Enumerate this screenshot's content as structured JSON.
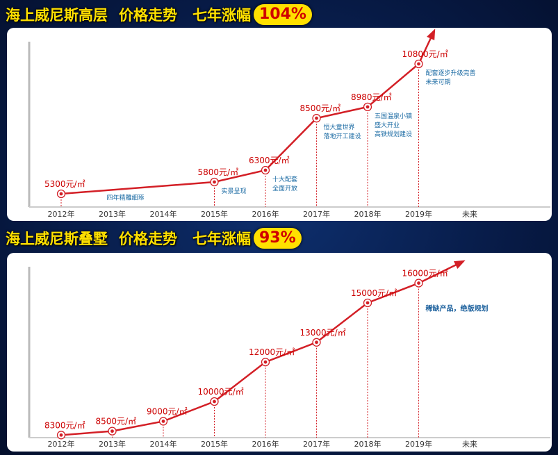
{
  "panels": [
    {
      "title": "海上威尼斯高层",
      "subtitle": "价格走势",
      "rise_label": "七年涨幅",
      "rise_value": "104%"
    },
    {
      "title": "海上威尼斯叠墅",
      "subtitle": "价格走势",
      "rise_label": "七年涨幅",
      "rise_value": "93%"
    }
  ],
  "colors": {
    "line": "#d31f26",
    "accent": "#ffe000",
    "annotation": "#1a6aa3"
  },
  "chart_data": [
    {
      "type": "line",
      "categories": [
        "2012年",
        "2013年",
        "2014年",
        "2015年",
        "2016年",
        "2017年",
        "2018年",
        "2019年",
        "未来"
      ],
      "values": [
        5300,
        null,
        null,
        5800,
        6300,
        8500,
        8980,
        10800,
        null
      ],
      "value_labels": [
        "5300元/㎡",
        "",
        "",
        "5800元/㎡",
        "6300元/㎡",
        "8500元/㎡",
        "8980元/㎡",
        "10800元/㎡",
        ""
      ],
      "unit": "元/㎡",
      "ylim": [
        4800,
        11800
      ],
      "annotations": [
        {
          "x": 1,
          "lines": [
            "四年精雕细琢"
          ]
        },
        {
          "x": 3,
          "lines": [
            "实景呈现"
          ]
        },
        {
          "x": 4,
          "lines": [
            "十大配套",
            "全面开放"
          ]
        },
        {
          "x": 5,
          "lines": [
            "恒大童世界",
            "落地开工建设"
          ]
        },
        {
          "x": 6,
          "lines": [
            "五国温泉小镇",
            "盛大开业",
            "高铁规划建设"
          ]
        },
        {
          "x": 7,
          "lines": [
            "配套逐步升级完善",
            "未来可期"
          ]
        }
      ],
      "legend": "none",
      "grid": false
    },
    {
      "type": "line",
      "categories": [
        "2012年",
        "2013年",
        "2014年",
        "2015年",
        "2016年",
        "2017年",
        "2018年",
        "2019年",
        "未来"
      ],
      "values": [
        8300,
        8500,
        9000,
        10000,
        12000,
        13000,
        15000,
        16000,
        null
      ],
      "value_labels": [
        "8300元/㎡",
        "8500元/㎡",
        "9000元/㎡",
        "10000元/㎡",
        "12000元/㎡",
        "13000元/㎡",
        "15000元/㎡",
        "16000元/㎡",
        ""
      ],
      "unit": "元/㎡",
      "ylim": [
        8100,
        16900
      ],
      "annotations": [
        {
          "x": 7,
          "lines": [
            "稀缺产品，绝版规划"
          ],
          "bold": true
        }
      ],
      "legend": "none",
      "grid": false
    }
  ]
}
